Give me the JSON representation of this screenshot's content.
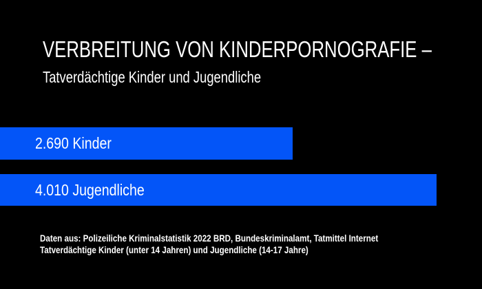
{
  "title": "VERBREITUNG VON KINDERPORNOGRAFIE –",
  "subtitle": "Tatverdächtige Kinder und Jugendliche",
  "chart_data": {
    "type": "bar",
    "orientation": "horizontal",
    "title": "VERBREITUNG VON KINDERPORNOGRAFIE – Tatverdächtige Kinder und Jugendliche",
    "categories": [
      "Kinder",
      "Jugendliche"
    ],
    "values": [
      2690,
      4010
    ],
    "labels": [
      "2.690 Kinder",
      "4.010 Jugendliche"
    ],
    "xlabel": "",
    "ylabel": "",
    "axes_visible": false,
    "grid": false,
    "legend": "none",
    "bar_color": "#0355f8",
    "background_color": "#000000",
    "text_color": "#ffffff"
  },
  "footer": {
    "line1": "Daten aus: Polizeiliche Kriminalstatistik 2022 BRD, Bundeskriminalamt, Tatmittel Internet",
    "line2": "Tatverdächtige Kinder (unter 14 Jahren) und Jugendliche (14-17 Jahre)"
  }
}
